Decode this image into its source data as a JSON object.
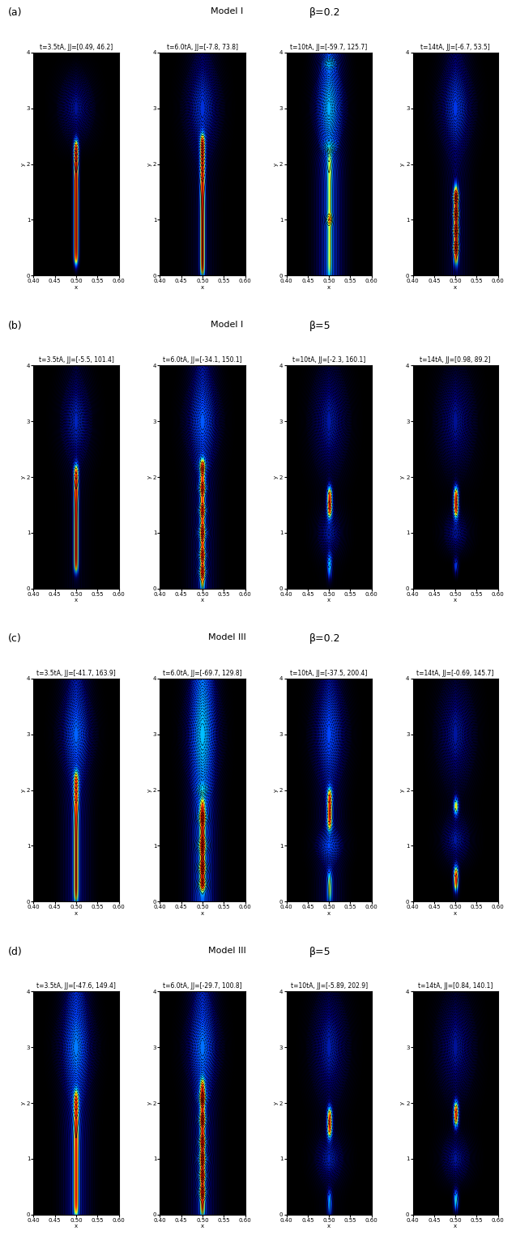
{
  "chart_data": {
    "type": "heatmap",
    "xlabel": "x",
    "ylabel": "y",
    "xlim": [
      0.4,
      0.6
    ],
    "xticks": [
      {
        "value": 0.4,
        "label": "0.40"
      },
      0.45,
      {
        "value": 0.5,
        "label": "0.50"
      },
      0.55,
      {
        "value": 0.6,
        "label": "0.60"
      }
    ],
    "ylim": [
      0,
      4
    ],
    "yticks": [
      0,
      1,
      2,
      3,
      4
    ],
    "rows": [
      {
        "label": "(a)",
        "model": "Model I",
        "beta": "β=0.2",
        "panels": [
          {
            "title": "t=3.5tA, JJ=[0.49, 46.2]",
            "jj": [
              0.49,
              46.2
            ],
            "sheets": [
              {
                "y": [
                  0.2,
                  2.4
                ],
                "j": 46
              }
            ],
            "islands": [
              {
                "y": 3.0,
                "h": 0.6,
                "w": 0.07
              }
            ]
          },
          {
            "title": "t=6.0tA, JJ=[-7.8, 73.8]",
            "jj": [
              -7.8,
              73.8
            ],
            "sheets": [
              {
                "y": [
                  0.0,
                  2.5
                ],
                "j": 70
              }
            ],
            "islands": [
              {
                "y": 3.0,
                "h": 0.75,
                "w": 0.08
              }
            ]
          },
          {
            "title": "t=10tA, JJ=[-59.7, 125.7]",
            "jj": [
              -59.7,
              125.7
            ],
            "sheets": [
              {
                "y": [
                  0.0,
                  2.2
                ],
                "j": 60
              }
            ],
            "islands": [
              {
                "y": 3.0,
                "h": 0.6,
                "w": 0.07
              },
              {
                "y": 1.0,
                "h": 0.08,
                "w": 0.01
              },
              {
                "y": 2.3,
                "h": 0.1,
                "w": 0.02
              },
              {
                "y": 3.8,
                "h": 0.1,
                "w": 0.02
              }
            ]
          },
          {
            "title": "t=14tA, JJ=[-6.7, 53.5]",
            "jj": [
              -6.7,
              53.5
            ],
            "sheets": [
              {
                "y": [
                  0.2,
                  1.6
                ],
                "j": 50
              }
            ],
            "islands": [
              {
                "y": 3.0,
                "h": 0.7,
                "w": 0.08
              },
              {
                "y": 0.5,
                "h": 0.1,
                "w": 0.012
              },
              {
                "y": 0.8,
                "h": 0.1,
                "w": 0.012
              },
              {
                "y": 1.1,
                "h": 0.1,
                "w": 0.012
              },
              {
                "y": 1.4,
                "h": 0.1,
                "w": 0.012
              }
            ]
          }
        ]
      },
      {
        "label": "(b)",
        "model": "Model I",
        "beta": "β=5",
        "panels": [
          {
            "title": "t=3.5tA, JJ=[-5.5, 101.4]",
            "jj": [
              -5.5,
              101.4
            ],
            "sheets": [
              {
                "y": [
                  0.3,
                  2.2
                ],
                "j": 95
              }
            ],
            "islands": [
              {
                "y": 3.0,
                "h": 0.7,
                "w": 0.06
              }
            ]
          },
          {
            "title": "t=6.0tA, JJ=[-34.1, 150.1]",
            "jj": [
              -34.1,
              150.1
            ],
            "sheets": [
              {
                "y": [
                  0.0,
                  2.3
                ],
                "j": 120
              }
            ],
            "islands": [
              {
                "y": 3.0,
                "h": 0.7,
                "w": 0.08
              },
              {
                "y": 0.3,
                "h": 0.1,
                "w": 0.015
              },
              {
                "y": 0.6,
                "h": 0.1,
                "w": 0.015
              },
              {
                "y": 1.0,
                "h": 0.12,
                "w": 0.018
              },
              {
                "y": 1.4,
                "h": 0.1,
                "w": 0.015
              },
              {
                "y": 1.8,
                "h": 0.1,
                "w": 0.015
              },
              {
                "y": 2.2,
                "h": 0.1,
                "w": 0.015
              }
            ]
          },
          {
            "title": "t=10tA, JJ=[-2.3, 160.1]",
            "jj": [
              -2.3,
              160.1
            ],
            "sheets": [
              {
                "y": [
                  1.3,
                  1.8
                ],
                "j": 150
              },
              {
                "y": [
                  0.2,
                  0.6
                ],
                "j": 80
              }
            ],
            "islands": [
              {
                "y": 3.0,
                "h": 0.9,
                "w": 0.08
              },
              {
                "y": 1.0,
                "h": 0.4,
                "w": 0.04
              }
            ]
          },
          {
            "title": "t=14tA, JJ=[0.98, 89.2]",
            "jj": [
              0.98,
              89.2
            ],
            "sheets": [
              {
                "y": [
                  1.3,
                  1.8
                ],
                "j": 85
              },
              {
                "y": [
                  0.3,
                  0.5
                ],
                "j": 40
              }
            ],
            "islands": [
              {
                "y": 3.0,
                "h": 0.9,
                "w": 0.08
              },
              {
                "y": 1.0,
                "h": 0.35,
                "w": 0.04
              }
            ]
          }
        ]
      },
      {
        "label": "(c)",
        "model": "Model III",
        "beta": "β=0.2",
        "panels": [
          {
            "title": "t=3.5tA, JJ=[-41.7, 163.9]",
            "jj": [
              -41.7,
              163.9
            ],
            "sheets": [
              {
                "y": [
                  0.0,
                  2.3
                ],
                "j": 140
              }
            ],
            "islands": [
              {
                "y": 3.0,
                "h": 0.7,
                "w": 0.08
              }
            ]
          },
          {
            "title": "t=6.0tA, JJ=[-69.7, 129.8]",
            "jj": [
              -69.7,
              129.8
            ],
            "sheets": [
              {
                "y": [
                  0.2,
                  1.8
                ],
                "j": 120
              }
            ],
            "islands": [
              {
                "y": 3.0,
                "h": 0.9,
                "w": 0.09
              },
              {
                "y": 0.3,
                "h": 0.1,
                "w": 0.015
              },
              {
                "y": 0.6,
                "h": 0.1,
                "w": 0.015
              },
              {
                "y": 1.0,
                "h": 0.12,
                "w": 0.018
              },
              {
                "y": 1.5,
                "h": 0.1,
                "w": 0.015
              },
              {
                "y": 2.0,
                "h": 0.1,
                "w": 0.015
              }
            ]
          },
          {
            "title": "t=10tA, JJ=[-37.5, 200.4]",
            "jj": [
              -37.5,
              200.4
            ],
            "sheets": [
              {
                "y": [
                  1.3,
                  2.0
                ],
                "j": 180
              },
              {
                "y": [
                  0.0,
                  0.5
                ],
                "j": 120
              }
            ],
            "islands": [
              {
                "y": 3.0,
                "h": 0.8,
                "w": 0.08
              },
              {
                "y": 1.0,
                "h": 0.3,
                "w": 0.05
              }
            ]
          },
          {
            "title": "t=14tA, JJ=[-0.69, 145.7]",
            "jj": [
              -0.69,
              145.7
            ],
            "sheets": [
              {
                "y": [
                  1.6,
                  1.8
                ],
                "j": 140
              },
              {
                "y": [
                  0.2,
                  0.6
                ],
                "j": 140
              }
            ],
            "islands": [
              {
                "y": 3.0,
                "h": 0.9,
                "w": 0.08
              },
              {
                "y": 1.1,
                "h": 0.4,
                "w": 0.05
              }
            ]
          }
        ]
      },
      {
        "label": "(d)",
        "model": "Model III",
        "beta": "β=5",
        "panels": [
          {
            "title": "t=3.5tA, JJ=[-47.6, 149.4]",
            "jj": [
              -47.6,
              149.4
            ],
            "sheets": [
              {
                "y": [
                  0.0,
                  2.2
                ],
                "j": 130
              }
            ],
            "islands": [
              {
                "y": 3.0,
                "h": 0.75,
                "w": 0.09
              }
            ]
          },
          {
            "title": "t=6.0tA, JJ=[-29.7, 100.8]",
            "jj": [
              -29.7,
              100.8
            ],
            "sheets": [
              {
                "y": [
                  0.0,
                  2.4
                ],
                "j": 90
              }
            ],
            "islands": [
              {
                "y": 3.0,
                "h": 0.7,
                "w": 0.08
              },
              {
                "y": 0.4,
                "h": 0.1,
                "w": 0.015
              },
              {
                "y": 0.7,
                "h": 0.1,
                "w": 0.015
              },
              {
                "y": 1.0,
                "h": 0.12,
                "w": 0.018
              },
              {
                "y": 1.3,
                "h": 0.1,
                "w": 0.015
              },
              {
                "y": 1.7,
                "h": 0.1,
                "w": 0.015
              },
              {
                "y": 2.1,
                "h": 0.1,
                "w": 0.015
              }
            ]
          },
          {
            "title": "t=10tA, JJ=[-5.89, 202.9]",
            "jj": [
              -5.89,
              202.9
            ],
            "sheets": [
              {
                "y": [
                  1.4,
                  1.9
                ],
                "j": 180
              },
              {
                "y": [
                  0.0,
                  0.4
                ],
                "j": 100
              }
            ],
            "islands": [
              {
                "y": 3.0,
                "h": 0.9,
                "w": 0.08
              },
              {
                "y": 1.0,
                "h": 0.4,
                "w": 0.05
              }
            ]
          },
          {
            "title": "t=14tA, JJ=[0.84, 140.1]",
            "jj": [
              0.84,
              140.1
            ],
            "sheets": [
              {
                "y": [
                  1.6,
                  2.0
                ],
                "j": 130
              },
              {
                "y": [
                  0.1,
                  0.4
                ],
                "j": 90
              }
            ],
            "islands": [
              {
                "y": 3.0,
                "h": 0.9,
                "w": 0.08
              },
              {
                "y": 1.0,
                "h": 0.4,
                "w": 0.05
              }
            ]
          }
        ]
      }
    ]
  }
}
